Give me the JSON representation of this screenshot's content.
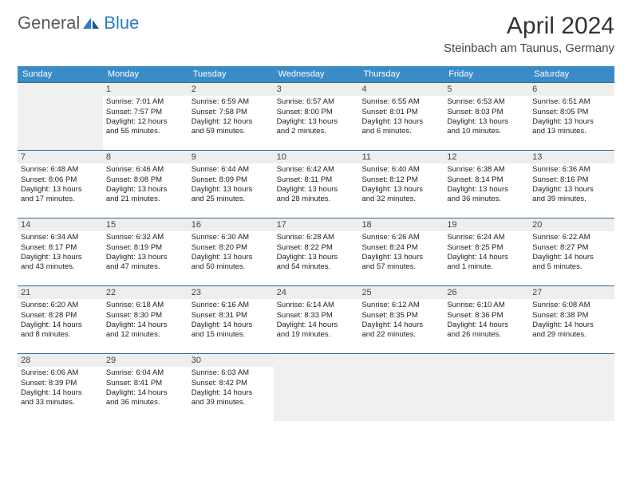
{
  "logo": {
    "general": "General",
    "blue": "Blue"
  },
  "title": "April 2024",
  "location": "Steinbach am Taunus, Germany",
  "colors": {
    "header_bg": "#3a8cc9",
    "header_text": "#ffffff",
    "row_border": "#2d6a9c",
    "daynum_bg": "#eeeeee",
    "empty_bg": "#f0f0f0",
    "logo_gray": "#5a5a5a",
    "logo_blue": "#2d7cc0"
  },
  "day_names": [
    "Sunday",
    "Monday",
    "Tuesday",
    "Wednesday",
    "Thursday",
    "Friday",
    "Saturday"
  ],
  "weeks": [
    [
      null,
      {
        "num": "1",
        "sunrise": "Sunrise: 7:01 AM",
        "sunset": "Sunset: 7:57 PM",
        "daylight1": "Daylight: 12 hours",
        "daylight2": "and 55 minutes."
      },
      {
        "num": "2",
        "sunrise": "Sunrise: 6:59 AM",
        "sunset": "Sunset: 7:58 PM",
        "daylight1": "Daylight: 12 hours",
        "daylight2": "and 59 minutes."
      },
      {
        "num": "3",
        "sunrise": "Sunrise: 6:57 AM",
        "sunset": "Sunset: 8:00 PM",
        "daylight1": "Daylight: 13 hours",
        "daylight2": "and 2 minutes."
      },
      {
        "num": "4",
        "sunrise": "Sunrise: 6:55 AM",
        "sunset": "Sunset: 8:01 PM",
        "daylight1": "Daylight: 13 hours",
        "daylight2": "and 6 minutes."
      },
      {
        "num": "5",
        "sunrise": "Sunrise: 6:53 AM",
        "sunset": "Sunset: 8:03 PM",
        "daylight1": "Daylight: 13 hours",
        "daylight2": "and 10 minutes."
      },
      {
        "num": "6",
        "sunrise": "Sunrise: 6:51 AM",
        "sunset": "Sunset: 8:05 PM",
        "daylight1": "Daylight: 13 hours",
        "daylight2": "and 13 minutes."
      }
    ],
    [
      {
        "num": "7",
        "sunrise": "Sunrise: 6:48 AM",
        "sunset": "Sunset: 8:06 PM",
        "daylight1": "Daylight: 13 hours",
        "daylight2": "and 17 minutes."
      },
      {
        "num": "8",
        "sunrise": "Sunrise: 6:46 AM",
        "sunset": "Sunset: 8:08 PM",
        "daylight1": "Daylight: 13 hours",
        "daylight2": "and 21 minutes."
      },
      {
        "num": "9",
        "sunrise": "Sunrise: 6:44 AM",
        "sunset": "Sunset: 8:09 PM",
        "daylight1": "Daylight: 13 hours",
        "daylight2": "and 25 minutes."
      },
      {
        "num": "10",
        "sunrise": "Sunrise: 6:42 AM",
        "sunset": "Sunset: 8:11 PM",
        "daylight1": "Daylight: 13 hours",
        "daylight2": "and 28 minutes."
      },
      {
        "num": "11",
        "sunrise": "Sunrise: 6:40 AM",
        "sunset": "Sunset: 8:12 PM",
        "daylight1": "Daylight: 13 hours",
        "daylight2": "and 32 minutes."
      },
      {
        "num": "12",
        "sunrise": "Sunrise: 6:38 AM",
        "sunset": "Sunset: 8:14 PM",
        "daylight1": "Daylight: 13 hours",
        "daylight2": "and 36 minutes."
      },
      {
        "num": "13",
        "sunrise": "Sunrise: 6:36 AM",
        "sunset": "Sunset: 8:16 PM",
        "daylight1": "Daylight: 13 hours",
        "daylight2": "and 39 minutes."
      }
    ],
    [
      {
        "num": "14",
        "sunrise": "Sunrise: 6:34 AM",
        "sunset": "Sunset: 8:17 PM",
        "daylight1": "Daylight: 13 hours",
        "daylight2": "and 43 minutes."
      },
      {
        "num": "15",
        "sunrise": "Sunrise: 6:32 AM",
        "sunset": "Sunset: 8:19 PM",
        "daylight1": "Daylight: 13 hours",
        "daylight2": "and 47 minutes."
      },
      {
        "num": "16",
        "sunrise": "Sunrise: 6:30 AM",
        "sunset": "Sunset: 8:20 PM",
        "daylight1": "Daylight: 13 hours",
        "daylight2": "and 50 minutes."
      },
      {
        "num": "17",
        "sunrise": "Sunrise: 6:28 AM",
        "sunset": "Sunset: 8:22 PM",
        "daylight1": "Daylight: 13 hours",
        "daylight2": "and 54 minutes."
      },
      {
        "num": "18",
        "sunrise": "Sunrise: 6:26 AM",
        "sunset": "Sunset: 8:24 PM",
        "daylight1": "Daylight: 13 hours",
        "daylight2": "and 57 minutes."
      },
      {
        "num": "19",
        "sunrise": "Sunrise: 6:24 AM",
        "sunset": "Sunset: 8:25 PM",
        "daylight1": "Daylight: 14 hours",
        "daylight2": "and 1 minute."
      },
      {
        "num": "20",
        "sunrise": "Sunrise: 6:22 AM",
        "sunset": "Sunset: 8:27 PM",
        "daylight1": "Daylight: 14 hours",
        "daylight2": "and 5 minutes."
      }
    ],
    [
      {
        "num": "21",
        "sunrise": "Sunrise: 6:20 AM",
        "sunset": "Sunset: 8:28 PM",
        "daylight1": "Daylight: 14 hours",
        "daylight2": "and 8 minutes."
      },
      {
        "num": "22",
        "sunrise": "Sunrise: 6:18 AM",
        "sunset": "Sunset: 8:30 PM",
        "daylight1": "Daylight: 14 hours",
        "daylight2": "and 12 minutes."
      },
      {
        "num": "23",
        "sunrise": "Sunrise: 6:16 AM",
        "sunset": "Sunset: 8:31 PM",
        "daylight1": "Daylight: 14 hours",
        "daylight2": "and 15 minutes."
      },
      {
        "num": "24",
        "sunrise": "Sunrise: 6:14 AM",
        "sunset": "Sunset: 8:33 PM",
        "daylight1": "Daylight: 14 hours",
        "daylight2": "and 19 minutes."
      },
      {
        "num": "25",
        "sunrise": "Sunrise: 6:12 AM",
        "sunset": "Sunset: 8:35 PM",
        "daylight1": "Daylight: 14 hours",
        "daylight2": "and 22 minutes."
      },
      {
        "num": "26",
        "sunrise": "Sunrise: 6:10 AM",
        "sunset": "Sunset: 8:36 PM",
        "daylight1": "Daylight: 14 hours",
        "daylight2": "and 26 minutes."
      },
      {
        "num": "27",
        "sunrise": "Sunrise: 6:08 AM",
        "sunset": "Sunset: 8:38 PM",
        "daylight1": "Daylight: 14 hours",
        "daylight2": "and 29 minutes."
      }
    ],
    [
      {
        "num": "28",
        "sunrise": "Sunrise: 6:06 AM",
        "sunset": "Sunset: 8:39 PM",
        "daylight1": "Daylight: 14 hours",
        "daylight2": "and 33 minutes."
      },
      {
        "num": "29",
        "sunrise": "Sunrise: 6:04 AM",
        "sunset": "Sunset: 8:41 PM",
        "daylight1": "Daylight: 14 hours",
        "daylight2": "and 36 minutes."
      },
      {
        "num": "30",
        "sunrise": "Sunrise: 6:03 AM",
        "sunset": "Sunset: 8:42 PM",
        "daylight1": "Daylight: 14 hours",
        "daylight2": "and 39 minutes."
      },
      null,
      null,
      null,
      null
    ]
  ]
}
